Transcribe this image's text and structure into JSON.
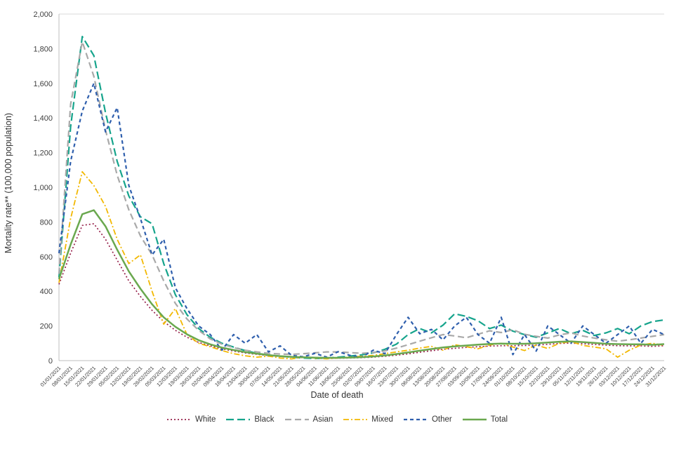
{
  "chart_data": {
    "type": "line",
    "title": "",
    "xlabel": "Date of death",
    "ylabel": "Mortality rate** (100,000 population)",
    "ylim": [
      0,
      2000
    ],
    "ytick_step": 200,
    "ytick_labels": [
      "0",
      "200",
      "400",
      "600",
      "800",
      "1,000",
      "1,200",
      "1,400",
      "1,600",
      "1,800",
      "2,000"
    ],
    "grid": "top-line-only",
    "legend_position": "bottom",
    "axis_color": "#bfbfbf",
    "grid_color": "#d9d9d9",
    "tick_label_color": "#3f3f3f",
    "categories": [
      "01/01/2021",
      "08/01/2021",
      "15/01/2021",
      "22/01/2021",
      "29/01/2021",
      "05/02/2021",
      "12/02/2021",
      "19/02/2021",
      "26/02/2021",
      "05/03/2021",
      "12/03/2021",
      "19/03/2021",
      "26/03/2021",
      "02/04/2021",
      "09/04/2021",
      "16/04/2021",
      "23/04/2021",
      "30/04/2021",
      "07/05/2021",
      "14/05/2021",
      "21/05/2021",
      "28/05/2021",
      "04/06/2021",
      "11/06/2021",
      "18/06/2021",
      "25/06/2021",
      "02/07/2021",
      "09/07/2021",
      "16/07/2021",
      "23/07/2021",
      "30/07/2021",
      "06/08/2021",
      "13/08/2021",
      "20/08/2021",
      "27/08/2021",
      "03/09/2021",
      "10/09/2021",
      "17/09/2021",
      "24/09/2021",
      "01/10/2021",
      "08/10/2021",
      "15/10/2021",
      "22/10/2021",
      "29/10/2021",
      "05/11/2021",
      "12/11/2021",
      "19/11/2021",
      "26/11/2021",
      "03/12/2021",
      "10/12/2021",
      "17/12/2021",
      "24/12/2021",
      "31/12/2021"
    ],
    "series": [
      {
        "name": "White",
        "color": "#96204a",
        "dash": "2 3",
        "width": 1.7,
        "values": [
          440,
          620,
          780,
          790,
          700,
          580,
          460,
          370,
          290,
          225,
          175,
          135,
          105,
          85,
          68,
          55,
          44,
          36,
          29,
          24,
          20,
          17,
          15,
          14,
          14,
          15,
          17,
          20,
          25,
          31,
          39,
          48,
          57,
          65,
          71,
          76,
          80,
          84,
          86,
          86,
          87,
          90,
          94,
          99,
          101,
          98,
          93,
          89,
          86,
          85,
          85,
          82,
          86
        ]
      },
      {
        "name": "Black",
        "color": "#16a48c",
        "dash": "11 5",
        "width": 2.2,
        "values": [
          480,
          1350,
          1870,
          1760,
          1430,
          1150,
          950,
          830,
          790,
          560,
          380,
          265,
          185,
          135,
          100,
          78,
          58,
          42,
          32,
          25,
          20,
          15,
          12,
          15,
          20,
          26,
          33,
          45,
          65,
          95,
          150,
          185,
          160,
          205,
          270,
          255,
          230,
          185,
          205,
          170,
          150,
          135,
          160,
          185,
          155,
          175,
          145,
          160,
          185,
          155,
          200,
          225,
          235
        ]
      },
      {
        "name": "Asian",
        "color": "#a9a9a9",
        "dash": "9 5",
        "width": 2.2,
        "values": [
          500,
          1480,
          1840,
          1640,
          1330,
          1070,
          870,
          720,
          610,
          460,
          330,
          240,
          175,
          125,
          95,
          75,
          60,
          50,
          42,
          38,
          36,
          40,
          45,
          50,
          50,
          46,
          42,
          46,
          56,
          72,
          92,
          112,
          132,
          150,
          142,
          132,
          152,
          172,
          162,
          178,
          152,
          140,
          130,
          148,
          160,
          142,
          130,
          120,
          112,
          120,
          130,
          140,
          150
        ]
      },
      {
        "name": "Mixed",
        "color": "#f2b800",
        "dash": "8 3 2 3",
        "width": 1.8,
        "values": [
          450,
          820,
          1090,
          1010,
          890,
          700,
          560,
          610,
          400,
          210,
          300,
          150,
          100,
          80,
          58,
          40,
          28,
          20,
          26,
          15,
          10,
          20,
          14,
          10,
          15,
          20,
          25,
          30,
          40,
          50,
          60,
          72,
          82,
          60,
          92,
          80,
          68,
          90,
          100,
          78,
          58,
          90,
          70,
          100,
          110,
          88,
          78,
          68,
          20,
          60,
          90,
          100,
          88
        ]
      },
      {
        "name": "Other",
        "color": "#2f5fad",
        "dash": "5 4",
        "width": 2.2,
        "values": [
          620,
          1150,
          1440,
          1600,
          1320,
          1460,
          1010,
          820,
          610,
          700,
          420,
          300,
          200,
          150,
          60,
          150,
          100,
          150,
          50,
          85,
          30,
          22,
          42,
          20,
          52,
          30,
          20,
          60,
          40,
          150,
          250,
          155,
          180,
          120,
          200,
          250,
          150,
          100,
          250,
          35,
          150,
          55,
          200,
          150,
          100,
          200,
          150,
          100,
          150,
          200,
          100,
          180,
          150
        ]
      },
      {
        "name": "Total",
        "color": "#6aa84f",
        "dash": "",
        "width": 2.5,
        "values": [
          470,
          670,
          845,
          868,
          775,
          640,
          515,
          415,
          325,
          250,
          195,
          152,
          118,
          94,
          75,
          61,
          49,
          40,
          32,
          26,
          22,
          19,
          17,
          16,
          16,
          17,
          20,
          24,
          30,
          38,
          47,
          57,
          67,
          76,
          82,
          87,
          92,
          96,
          98,
          97,
          97,
          100,
          104,
          109,
          111,
          107,
          102,
          97,
          95,
          94,
          94,
          91,
          95
        ]
      }
    ]
  }
}
